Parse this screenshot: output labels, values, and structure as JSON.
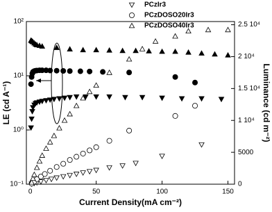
{
  "chart_data": {
    "type": "scatter",
    "xlabel": "Current Density(mA cm⁻²)",
    "ylabel": "LE (cd A⁻¹)",
    "y2label": "Luminance (cd m⁻²)",
    "xlim": [
      -3,
      155
    ],
    "xticks": [
      0,
      50,
      100,
      150
    ],
    "ylim": [
      0.1,
      100
    ],
    "ylog": true,
    "yticks": [
      {
        "value": 0.1,
        "label": "10⁻¹"
      },
      {
        "value": 1,
        "label": "10⁰"
      },
      {
        "value": 10,
        "label": "10¹"
      },
      {
        "value": 100,
        "label": "10²"
      }
    ],
    "y2lim": [
      0,
      25500
    ],
    "y2ticks": [
      0,
      5000,
      {
        "value": 10000,
        "label": "1 10⁴"
      },
      {
        "value": 15000,
        "label": "1.5 10⁴"
      },
      {
        "value": 20000,
        "label": "2 10⁴"
      },
      {
        "value": 25000,
        "label": "2.5 10⁴"
      }
    ],
    "color": "#000000",
    "series": [
      {
        "marker": "down",
        "filled": true,
        "x": [
          0.5,
          1,
          1.5,
          2,
          3,
          4,
          5,
          7,
          9,
          12,
          15,
          18,
          22,
          26,
          30,
          35,
          42,
          50,
          60,
          72,
          85,
          100,
          115,
          130,
          145
        ],
        "values": [
          1.1,
          1.6,
          2.2,
          2.6,
          2.9,
          3.1,
          3.2,
          3.3,
          3.4,
          3.5,
          3.6,
          3.7,
          3.8,
          3.9,
          4.0,
          4.1,
          4.1,
          4.1,
          4.1,
          4.0,
          4.0,
          3.9,
          3.8,
          3.8,
          3.7
        ]
      },
      {
        "marker": "circle",
        "filled": true,
        "x": [
          0.5,
          1,
          1.5,
          2,
          3,
          4,
          5,
          7,
          9,
          12,
          15,
          20,
          25,
          30,
          38,
          45,
          55,
          75,
          110,
          125
        ],
        "values": [
          7,
          9.5,
          11,
          11.8,
          12.2,
          12.4,
          12.5,
          12.6,
          12.6,
          12.6,
          12.5,
          12.4,
          12.3,
          12.2,
          12.1,
          12,
          11.8,
          11.5,
          9.5,
          7.5
        ]
      },
      {
        "marker": "up",
        "filled": true,
        "x": [
          0.5,
          1,
          1.5,
          2,
          3,
          4,
          5,
          7,
          9,
          20,
          30,
          40,
          50,
          60,
          70,
          80,
          90,
          100,
          110,
          120,
          130,
          140,
          150
        ],
        "values": [
          45,
          44,
          43,
          42,
          40,
          38,
          37,
          36,
          35,
          33,
          31,
          30,
          30,
          29.5,
          29,
          29,
          28.5,
          28,
          28,
          27,
          26,
          25,
          24
        ]
      },
      {
        "name": "PCzIr3",
        "marker": "down",
        "filled": false,
        "axis": "y2",
        "x": [
          1,
          3,
          5,
          8,
          12,
          16,
          20,
          25,
          30,
          35,
          40,
          45,
          50,
          60,
          70,
          80,
          100,
          130
        ],
        "values": [
          50,
          150,
          250,
          400,
          600,
          800,
          1000,
          1200,
          1400,
          1600,
          1800,
          2000,
          2200,
          2600,
          2900,
          3300,
          4400,
          6200
        ]
      },
      {
        "name": "PCzDOSO20Ir3",
        "marker": "circle",
        "filled": false,
        "axis": "y2",
        "x": [
          1,
          3,
          5,
          8,
          11,
          15,
          20,
          25,
          30,
          35,
          40,
          45,
          50,
          60,
          75,
          110,
          125
        ],
        "values": [
          100,
          400,
          800,
          1200,
          1600,
          2100,
          2700,
          3200,
          3800,
          4300,
          4800,
          5300,
          5800,
          6800,
          8400,
          10700,
          12300
        ]
      },
      {
        "name": "PCzDOSO40Ir3",
        "marker": "up",
        "filled": false,
        "axis": "y2",
        "x": [
          1,
          2,
          3,
          5,
          7,
          9,
          12,
          15,
          18,
          22,
          26,
          30,
          35,
          40,
          45,
          50,
          60,
          75,
          85,
          95,
          110,
          120,
          135,
          150
        ],
        "values": [
          300,
          900,
          1500,
          2600,
          3600,
          4500,
          5600,
          6600,
          7600,
          8800,
          10000,
          11000,
          12300,
          13500,
          14500,
          15500,
          17500,
          19600,
          21200,
          22400,
          23200,
          24000,
          24200,
          24200
        ]
      }
    ]
  }
}
